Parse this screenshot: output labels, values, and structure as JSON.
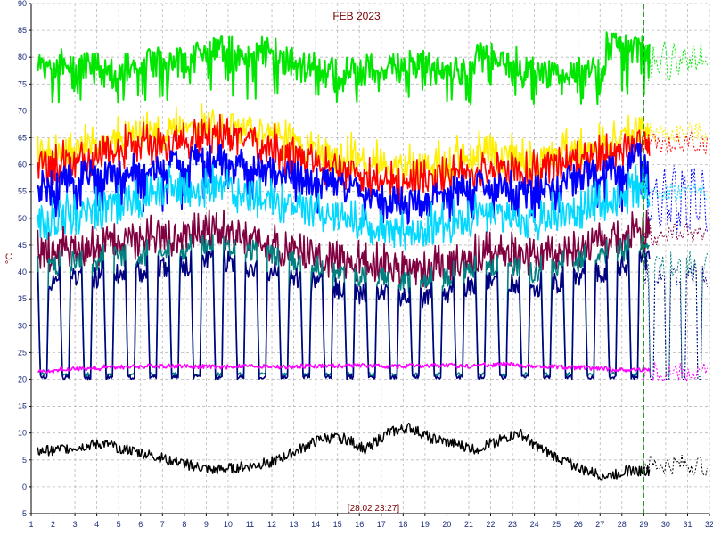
{
  "chart_data": {
    "type": "line",
    "title": "FEB 2023",
    "ylabel": "°C",
    "xlabel": "",
    "timestamp_label": "[28.02 23:27]",
    "xlim": [
      1,
      32
    ],
    "ylim": [
      -5,
      90
    ],
    "x_ticks": [
      1,
      2,
      3,
      4,
      5,
      6,
      7,
      8,
      9,
      10,
      11,
      12,
      13,
      14,
      15,
      16,
      17,
      18,
      19,
      20,
      21,
      22,
      23,
      24,
      25,
      26,
      27,
      28,
      29,
      30,
      31,
      32
    ],
    "y_ticks": [
      -5,
      0,
      5,
      10,
      15,
      20,
      25,
      30,
      35,
      40,
      45,
      50,
      55,
      60,
      65,
      70,
      75,
      80,
      85,
      90
    ],
    "grid": true,
    "current_day_marker": 29,
    "series": [
      {
        "color": "#00e600",
        "kind": "cycle",
        "low": 65,
        "high": [
          81,
          82,
          81,
          80,
          81,
          82,
          82,
          83,
          84,
          83,
          84,
          82,
          81,
          80,
          80,
          81,
          81,
          82,
          80,
          80,
          83,
          82,
          80,
          80,
          80,
          80,
          85,
          85
        ],
        "ext_low": 75,
        "ext_high": 83
      },
      {
        "color": "#ffee00",
        "kind": "band",
        "values": [
          64,
          65,
          66,
          67,
          68,
          68,
          69,
          70,
          70,
          69,
          68,
          67,
          65,
          64,
          64,
          63,
          62,
          62,
          63,
          64,
          65,
          64,
          63,
          64,
          65,
          66,
          67,
          69
        ],
        "ext": 66
      },
      {
        "color": "#ff0000",
        "kind": "band",
        "values": [
          62,
          63,
          64,
          65,
          66,
          66,
          67,
          68,
          68,
          67,
          66,
          64,
          63,
          62,
          61,
          60,
          59,
          59,
          60,
          61,
          62,
          62,
          61,
          62,
          63,
          64,
          65,
          67
        ],
        "ext": 64
      },
      {
        "color": "#0000ff",
        "kind": "cycle",
        "low": 44,
        "high": [
          59,
          60,
          61,
          61,
          62,
          62,
          63,
          64,
          64,
          63,
          62,
          61,
          60,
          60,
          58,
          57,
          56,
          56,
          57,
          58,
          59,
          59,
          58,
          59,
          60,
          61,
          62,
          64
        ],
        "ext_low": 47,
        "ext_high": 60
      },
      {
        "color": "#00d8ff",
        "kind": "band",
        "values": [
          52,
          53,
          54,
          55,
          56,
          57,
          58,
          58,
          58,
          57,
          56,
          55,
          54,
          53,
          52,
          51,
          50,
          50,
          51,
          52,
          53,
          53,
          52,
          53,
          54,
          55,
          56,
          58
        ],
        "ext": 55
      },
      {
        "color": "#800040",
        "kind": "band",
        "values": [
          46,
          47,
          47,
          48,
          48,
          49,
          49,
          50,
          50,
          49,
          48,
          47,
          46,
          45,
          44,
          44,
          43,
          43,
          44,
          45,
          46,
          46,
          45,
          46,
          47,
          48,
          48,
          50
        ],
        "ext": 47
      },
      {
        "color": "#008080",
        "kind": "bigcycle",
        "low": 20.5,
        "high": [
          43,
          44,
          44,
          45,
          45,
          46,
          46,
          47,
          47,
          46,
          45,
          44,
          43,
          42,
          41,
          41,
          40,
          40,
          41,
          42,
          43,
          43,
          42,
          43,
          44,
          45,
          46,
          47
        ],
        "ext_low": 20.5,
        "ext_high": 44
      },
      {
        "color": "#000080",
        "kind": "bigcycle",
        "low": 20,
        "high": [
          40,
          41,
          41,
          42,
          42,
          43,
          43,
          44,
          44,
          43,
          42,
          41,
          40,
          39,
          38,
          38,
          37,
          37,
          38,
          39,
          40,
          40,
          39,
          40,
          41,
          42,
          43,
          44
        ],
        "ext_low": 20,
        "ext_high": 42
      },
      {
        "color": "#ff00ff",
        "kind": "flat",
        "values": [
          21.5,
          22,
          22,
          22.3,
          22.4,
          22.5,
          22.5,
          22.4,
          22.3,
          22.5,
          22.4,
          22.3,
          22.5,
          22.5,
          22.6,
          22.5,
          22.4,
          22.5,
          22.6,
          22.5,
          22.7,
          22.8,
          22.5,
          22.3,
          22.2,
          22,
          21.8,
          21.8
        ],
        "ext": 21.3
      },
      {
        "color": "#000000",
        "kind": "outdoor",
        "values": [
          6.5,
          7,
          7.5,
          8,
          7,
          6,
          5,
          4,
          3,
          3.5,
          4,
          5,
          7,
          9,
          9,
          7,
          10,
          11,
          9,
          8,
          7,
          8.5,
          10,
          7,
          5,
          3,
          2,
          3
        ],
        "ext": 4
      }
    ]
  }
}
